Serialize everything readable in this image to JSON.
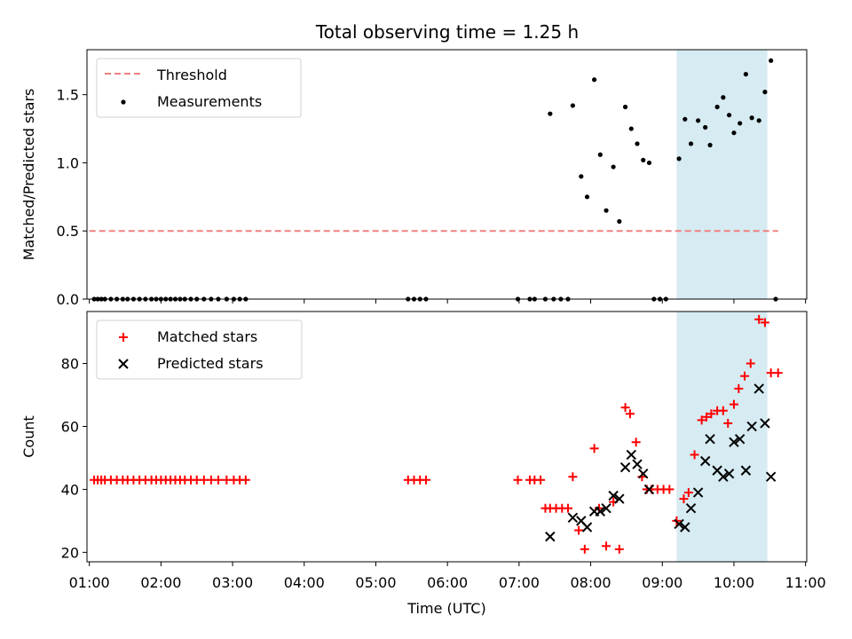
{
  "chart_data": [
    {
      "type": "scatter",
      "title": "Total observing time = 1.25 h",
      "xlabel": "",
      "ylabel": "Matched/Predicted stars",
      "xlim": [
        "00:58",
        "11:01"
      ],
      "ylim": [
        0,
        1.83
      ],
      "y_ticks": [
        0.0,
        0.5,
        1.0,
        1.5
      ],
      "y_tick_labels": [
        "0.0",
        "0.5",
        "1.0",
        "1.5"
      ],
      "shaded_span": {
        "x": [
          "09:12",
          "10:28"
        ],
        "color": "#add8e6"
      },
      "threshold": {
        "name": "Threshold",
        "y": 0.5,
        "x": [
          "01:00",
          "10:37"
        ],
        "color": "#f08080",
        "style": "dashed"
      },
      "series": [
        {
          "name": "Measurements",
          "color": "#000000",
          "marker": "dot",
          "points": [
            [
              "01:04",
              0
            ],
            [
              "01:07",
              0
            ],
            [
              "01:10",
              0
            ],
            [
              "01:13",
              0
            ],
            [
              "01:18",
              0
            ],
            [
              "01:23",
              0
            ],
            [
              "01:28",
              0
            ],
            [
              "01:32",
              0
            ],
            [
              "01:37",
              0
            ],
            [
              "01:42",
              0
            ],
            [
              "01:47",
              0
            ],
            [
              "01:52",
              0
            ],
            [
              "01:56",
              0
            ],
            [
              "02:00",
              0
            ],
            [
              "02:04",
              0
            ],
            [
              "02:08",
              0
            ],
            [
              "02:12",
              0
            ],
            [
              "02:16",
              0
            ],
            [
              "02:20",
              0
            ],
            [
              "02:25",
              0
            ],
            [
              "02:30",
              0
            ],
            [
              "02:36",
              0
            ],
            [
              "02:42",
              0
            ],
            [
              "02:48",
              0
            ],
            [
              "02:55",
              0
            ],
            [
              "03:01",
              0
            ],
            [
              "03:06",
              0
            ],
            [
              "03:11",
              0
            ],
            [
              "05:27",
              0
            ],
            [
              "05:32",
              0
            ],
            [
              "05:37",
              0
            ],
            [
              "05:42",
              0
            ],
            [
              "06:59",
              0
            ],
            [
              "07:09",
              0
            ],
            [
              "07:13",
              0
            ],
            [
              "07:22",
              0
            ],
            [
              "07:29",
              0
            ],
            [
              "07:35",
              0
            ],
            [
              "07:41",
              0
            ],
            [
              "07:26",
              1.36
            ],
            [
              "07:45",
              1.42
            ],
            [
              "07:52",
              0.9
            ],
            [
              "07:57",
              0.75
            ],
            [
              "08:03",
              1.61
            ],
            [
              "08:08",
              1.06
            ],
            [
              "08:13",
              0.65
            ],
            [
              "08:19",
              0.97
            ],
            [
              "08:24",
              0.57
            ],
            [
              "08:29",
              1.41
            ],
            [
              "08:34",
              1.25
            ],
            [
              "08:39",
              1.14
            ],
            [
              "08:44",
              1.02
            ],
            [
              "08:49",
              1.0
            ],
            [
              "08:53",
              0
            ],
            [
              "08:58",
              0
            ],
            [
              "09:03",
              0
            ],
            [
              "09:14",
              1.03
            ],
            [
              "09:19",
              1.32
            ],
            [
              "09:24",
              1.14
            ],
            [
              "09:30",
              1.31
            ],
            [
              "09:36",
              1.26
            ],
            [
              "09:40",
              1.13
            ],
            [
              "09:46",
              1.41
            ],
            [
              "09:51",
              1.48
            ],
            [
              "09:56",
              1.35
            ],
            [
              "10:00",
              1.22
            ],
            [
              "10:05",
              1.29
            ],
            [
              "10:10",
              1.65
            ],
            [
              "10:15",
              1.33
            ],
            [
              "10:21",
              1.31
            ],
            [
              "10:26",
              1.52
            ],
            [
              "10:31",
              1.75
            ],
            [
              "10:35",
              0
            ]
          ]
        }
      ],
      "legend": [
        "Threshold",
        "Measurements"
      ],
      "legend_position": "upper left"
    },
    {
      "type": "scatter",
      "xlabel": "Time (UTC)",
      "ylabel": "Count",
      "xlim": [
        "00:58",
        "11:01"
      ],
      "ylim": [
        17,
        96.5
      ],
      "x_ticks": [
        "01:00",
        "02:00",
        "03:00",
        "04:00",
        "05:00",
        "06:00",
        "07:00",
        "08:00",
        "09:00",
        "10:00",
        "11:00"
      ],
      "y_ticks": [
        20,
        40,
        60,
        80
      ],
      "y_tick_labels": [
        "20",
        "40",
        "60",
        "80"
      ],
      "shaded_span": {
        "x": [
          "09:12",
          "10:28"
        ],
        "color": "#add8e6"
      },
      "series": [
        {
          "name": "Matched stars",
          "color": "#ff0000",
          "marker": "plus",
          "points": [
            [
              "01:04",
              43
            ],
            [
              "01:07",
              43
            ],
            [
              "01:10",
              43
            ],
            [
              "01:13",
              43
            ],
            [
              "01:18",
              43
            ],
            [
              "01:23",
              43
            ],
            [
              "01:28",
              43
            ],
            [
              "01:32",
              43
            ],
            [
              "01:37",
              43
            ],
            [
              "01:42",
              43
            ],
            [
              "01:47",
              43
            ],
            [
              "01:52",
              43
            ],
            [
              "01:56",
              43
            ],
            [
              "02:00",
              43
            ],
            [
              "02:04",
              43
            ],
            [
              "02:08",
              43
            ],
            [
              "02:12",
              43
            ],
            [
              "02:16",
              43
            ],
            [
              "02:20",
              43
            ],
            [
              "02:25",
              43
            ],
            [
              "02:30",
              43
            ],
            [
              "02:36",
              43
            ],
            [
              "02:42",
              43
            ],
            [
              "02:48",
              43
            ],
            [
              "02:55",
              43
            ],
            [
              "03:01",
              43
            ],
            [
              "03:06",
              43
            ],
            [
              "03:11",
              43
            ],
            [
              "05:27",
              43
            ],
            [
              "05:32",
              43
            ],
            [
              "05:37",
              43
            ],
            [
              "05:42",
              43
            ],
            [
              "06:59",
              43
            ],
            [
              "07:09",
              43
            ],
            [
              "07:13",
              43
            ],
            [
              "07:18",
              43
            ],
            [
              "07:22",
              34
            ],
            [
              "07:26",
              34
            ],
            [
              "07:31",
              34
            ],
            [
              "07:36",
              34
            ],
            [
              "07:41",
              34
            ],
            [
              "07:45",
              44
            ],
            [
              "07:50",
              27
            ],
            [
              "07:55",
              21
            ],
            [
              "08:03",
              53
            ],
            [
              "08:07",
              34
            ],
            [
              "08:13",
              22
            ],
            [
              "08:19",
              36
            ],
            [
              "08:24",
              21
            ],
            [
              "08:29",
              66
            ],
            [
              "08:33",
              64
            ],
            [
              "08:38",
              55
            ],
            [
              "08:43",
              44
            ],
            [
              "08:47",
              40
            ],
            [
              "08:51",
              40
            ],
            [
              "08:56",
              40
            ],
            [
              "09:01",
              40
            ],
            [
              "09:06",
              40
            ],
            [
              "09:12",
              30
            ],
            [
              "09:18",
              37
            ],
            [
              "09:22",
              39
            ],
            [
              "09:27",
              51
            ],
            [
              "09:33",
              62
            ],
            [
              "09:37",
              63
            ],
            [
              "09:41",
              64
            ],
            [
              "09:46",
              65
            ],
            [
              "09:51",
              65
            ],
            [
              "09:55",
              61
            ],
            [
              "10:00",
              67
            ],
            [
              "10:04",
              72
            ],
            [
              "10:09",
              76
            ],
            [
              "10:14",
              80
            ],
            [
              "10:21",
              94
            ],
            [
              "10:26",
              93
            ],
            [
              "10:31",
              77
            ],
            [
              "10:37",
              77
            ]
          ]
        },
        {
          "name": "Predicted stars",
          "color": "#000000",
          "marker": "x",
          "points": [
            [
              "07:26",
              25
            ],
            [
              "07:45",
              31
            ],
            [
              "07:52",
              30
            ],
            [
              "07:57",
              28
            ],
            [
              "08:03",
              33
            ],
            [
              "08:08",
              33
            ],
            [
              "08:13",
              34
            ],
            [
              "08:19",
              38
            ],
            [
              "08:24",
              37
            ],
            [
              "08:29",
              47
            ],
            [
              "08:34",
              51
            ],
            [
              "08:39",
              48
            ],
            [
              "08:44",
              45
            ],
            [
              "08:49",
              40
            ],
            [
              "09:14",
              29
            ],
            [
              "09:19",
              28
            ],
            [
              "09:24",
              34
            ],
            [
              "09:30",
              39
            ],
            [
              "09:36",
              49
            ],
            [
              "09:40",
              56
            ],
            [
              "09:46",
              46
            ],
            [
              "09:51",
              44
            ],
            [
              "09:56",
              45
            ],
            [
              "10:00",
              55
            ],
            [
              "10:05",
              56
            ],
            [
              "10:10",
              46
            ],
            [
              "10:15",
              60
            ],
            [
              "10:21",
              72
            ],
            [
              "10:26",
              61
            ],
            [
              "10:31",
              44
            ]
          ]
        }
      ],
      "legend": [
        "Matched stars",
        "Predicted stars"
      ],
      "legend_position": "upper left"
    }
  ]
}
